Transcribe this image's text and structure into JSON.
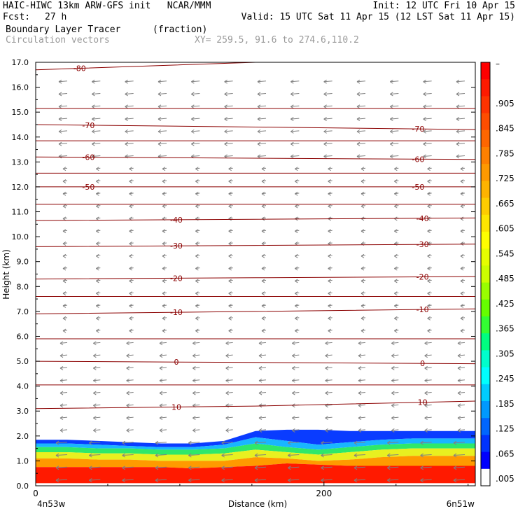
{
  "header": {
    "model_line": "HAIC-HIWC 13km ARW-GFS init   NCAR/MMM",
    "init": "Init: 12 UTC Fri 10 Apr 15",
    "fcst_label": "Fcst:",
    "fcst_value": "27 h",
    "valid": "Valid: 15 UTC Sat 11 Apr 15 (12 LST Sat 11 Apr 15)",
    "field_name": "Boundary Layer Tracer",
    "field_units": "(fraction)",
    "vectors_label": "Circulation vectors",
    "xy_label": "XY= 259.5, 91.6 to 274.6,110.2"
  },
  "chart_data": {
    "type": "heatmap",
    "title": "Boundary Layer Tracer (fraction)",
    "xlabel": "Distance (km)",
    "ylabel": "Height (km)",
    "ylim": [
      0,
      17
    ],
    "yticks": [
      0.0,
      1.0,
      2.0,
      3.0,
      4.0,
      5.0,
      6.0,
      7.0,
      8.0,
      9.0,
      10.0,
      11.0,
      12.0,
      13.0,
      14.0,
      15.0,
      16.0,
      17.0
    ],
    "ytick_labels": [
      "0.0",
      "1.0",
      "2.0",
      "3.0",
      "4.0",
      "5.0",
      "6.0",
      "7.0",
      "8.0",
      "9.0",
      "10.0",
      "11.0",
      "12.0",
      "13.0",
      "14.0",
      "15.0",
      "16.0",
      "17.0"
    ],
    "xlim": [
      0,
      305
    ],
    "xticks": [
      0,
      200
    ],
    "xtick_labels": [
      "0",
      "200"
    ],
    "x_endpoint_labels": [
      "4n53w",
      "6n51w"
    ],
    "colorbar": {
      "top_label": "–",
      "labels": [
        ".905",
        ".845",
        ".785",
        ".725",
        ".665",
        ".605",
        ".545",
        ".485",
        ".425",
        ".365",
        ".305",
        ".245",
        ".185",
        ".125",
        ".065",
        ".005"
      ],
      "colors": [
        "#ff0000",
        "#ff1a00",
        "#ff3300",
        "#ff4d00",
        "#ff6600",
        "#ff8000",
        "#ff9900",
        "#ffb300",
        "#ffcc00",
        "#ffe600",
        "#ffff00",
        "#e6ff00",
        "#ccff00",
        "#99ff00",
        "#66ff00",
        "#33ff33",
        "#00ff80",
        "#00ffcc",
        "#00ffff",
        "#00ccff",
        "#0099ff",
        "#0066ff",
        "#0033ff",
        "#0000ff",
        "#ffffff"
      ]
    },
    "temperature_contours": [
      {
        "value": 10,
        "label": "10",
        "heights": [
          3.1,
          3.2,
          3.4
        ]
      },
      {
        "value": 0,
        "label": "0",
        "heights": [
          5.0,
          4.95,
          4.9
        ]
      },
      {
        "value": -10,
        "label": "-10",
        "heights": [
          6.9,
          7.0,
          7.1
        ]
      },
      {
        "value": -20,
        "label": "-20",
        "heights": [
          8.3,
          8.35,
          8.4
        ]
      },
      {
        "value": -30,
        "label": "-30",
        "heights": [
          9.6,
          9.65,
          9.7
        ]
      },
      {
        "value": -40,
        "label": "-40",
        "heights": [
          10.65,
          10.7,
          10.75
        ]
      },
      {
        "value": -50,
        "label": "-50",
        "heights": [
          12.0,
          12.0,
          12.0
        ]
      },
      {
        "value": -60,
        "label": "-60",
        "heights": [
          13.2,
          13.15,
          13.1
        ]
      },
      {
        "value": -70,
        "label": "-70",
        "heights": [
          14.5,
          14.4,
          14.3
        ]
      },
      {
        "value": -80,
        "label": "-80",
        "heights": [
          16.7,
          17.0,
          17.0
        ]
      }
    ],
    "extra_isotherm_heights": [
      4.05,
      5.9,
      7.6,
      11.3,
      12.55,
      13.85,
      15.15
    ],
    "tracer_top_km": [
      1.85,
      1.85,
      1.8,
      1.75,
      1.7,
      1.7,
      1.8,
      2.2,
      2.25,
      2.25,
      2.2,
      2.2,
      2.2,
      2.2,
      2.2
    ],
    "tracer_levels_km": {
      "white_top": 0.1,
      "red_top": [
        0.75,
        0.75,
        0.75,
        0.75,
        0.75,
        0.7,
        0.75,
        0.8,
        0.9,
        0.85,
        0.8,
        0.8,
        0.8,
        0.8,
        0.8
      ],
      "orange_top": [
        1.1,
        1.1,
        1.05,
        1.05,
        1.0,
        1.0,
        1.0,
        1.15,
        1.1,
        1.0,
        1.05,
        1.15,
        1.2,
        1.2,
        1.2
      ],
      "yellow_top": [
        1.35,
        1.35,
        1.3,
        1.3,
        1.25,
        1.25,
        1.3,
        1.45,
        1.35,
        1.25,
        1.35,
        1.45,
        1.5,
        1.5,
        1.5
      ],
      "green_top": [
        1.55,
        1.55,
        1.5,
        1.5,
        1.45,
        1.45,
        1.5,
        1.7,
        1.55,
        1.45,
        1.55,
        1.65,
        1.7,
        1.7,
        1.7
      ],
      "cyan_top": [
        1.7,
        1.7,
        1.65,
        1.6,
        1.55,
        1.55,
        1.65,
        1.95,
        1.8,
        1.65,
        1.75,
        1.85,
        1.9,
        1.9,
        1.9
      ]
    },
    "vector_wind_u": -1
  }
}
